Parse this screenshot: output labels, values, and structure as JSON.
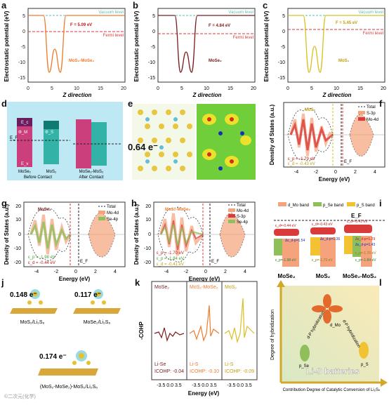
{
  "panels": {
    "a": {
      "letter": "a",
      "vacuum": "Vacuum level",
      "fermi": "Fermi level",
      "phi": "F = 5.09 eV",
      "material": "MoS₂-MoSe₂",
      "ylabel": "Electrostatic potential (eV)",
      "xlabel": "Z direction",
      "xticks": [
        "0",
        "5",
        "10",
        "15",
        "20"
      ],
      "yticks": [
        "5",
        "0",
        "-5",
        "-10",
        "-15"
      ]
    },
    "b": {
      "letter": "b",
      "vacuum": "Vacuum level",
      "fermi": "Fermi level",
      "phi": "F = 4.84 eV",
      "material": "MoSe₂",
      "ylabel": "Electrostatic potential (eV)",
      "xlabel": "Z direction",
      "xticks": [
        "0",
        "5",
        "10",
        "15",
        "20"
      ],
      "yticks": [
        "5",
        "0",
        "-5",
        "-10",
        "-15"
      ]
    },
    "c": {
      "letter": "c",
      "vacuum": "Vacuum level",
      "fermi": "Fermi level",
      "phi": "F = 5.45 eV",
      "material": "MoS₂",
      "ylabel": "Electrostatic potential (eV)",
      "xlabel": "Z direction",
      "xticks": [
        "0",
        "5",
        "10",
        "15",
        "20"
      ],
      "yticks": [
        "5",
        "0",
        "-5",
        "-10",
        "-15"
      ]
    },
    "d": {
      "letter": "d",
      "ef": "E_F",
      "before": "Before Contact",
      "after": "After Contact",
      "m1": "MoSe₂",
      "m2": "MoS₂",
      "m3": "MoSe₂-MoS₂",
      "ec": "E_c",
      "ev": "E_v",
      "phim": "Φ_M",
      "phis": "Φ_S"
    },
    "e": {
      "letter": "e",
      "charge": "0.64 e⁻"
    },
    "f": {
      "letter": "f",
      "material": "MoS₂",
      "legend": [
        "Total",
        "S-3p",
        "Mo-4d"
      ],
      "ep": "ε_p = -1.79 eV",
      "ed": "ε_d = -0.43 eV",
      "ef": "E_F",
      "ylabel": "Density of States (a.u.)",
      "xlabel": "Energy (eV)",
      "xticks": [
        "-4",
        "-2",
        "0",
        "2",
        "4"
      ]
    },
    "g": {
      "letter": "g",
      "material": "MoSe₂",
      "legend": [
        "Total",
        "Mo-4d",
        "Se-4p"
      ],
      "ep": "ε_p = -1.98 eV",
      "ed": "ε_d = -0.44 eV",
      "ef": "E_F",
      "ylabel": "Density of States (a.u.)",
      "xlabel": "Energy (eV)",
      "xticks": [
        "-4",
        "-2",
        "0",
        "2",
        "4"
      ],
      "yticks": [
        "20",
        "10",
        "0",
        "-10",
        "-20"
      ]
    },
    "h": {
      "letter": "h",
      "material": "MoS₂-MoSe₂",
      "legend": [
        "Total",
        "Mo-4d",
        "S-3p",
        "Se-4p"
      ],
      "ep": "ε_p = -1.70 eV",
      "ep2": "ε_p = -1.84 eV",
      "ed": "ε_d = -0.41 eV",
      "ef": "E_F",
      "ylabel": "Density of States (a.u.)",
      "xlabel": "Energy (eV)",
      "xticks": [
        "-4",
        "-2",
        "0",
        "2",
        "4"
      ],
      "yticks": [
        "20",
        "10",
        "0",
        "-10",
        "-20"
      ]
    },
    "i": {
      "letter": "i",
      "legend": [
        "d_Mo band",
        "p_Se band",
        "p_S band"
      ],
      "ef": "E_F",
      "col1": "MoSe₂",
      "col2": "MoS₂",
      "col3": "MoSe₂-MoS₂",
      "c1": [
        "ε_d=-0.44 eV",
        "Δε_d-p=1.54",
        "ε_p=-1.98 eV"
      ],
      "c2": [
        "ε_d=-0.43 eV",
        "Δε_d-p=1.36",
        "ε_p=-1.79 eV"
      ],
      "c3": [
        "ε_d=-0.41 eV",
        "Δε_d-p=1.29",
        "Δε_d-p=1.43",
        "ε_p=-1.70 eV",
        "ε_p=-1.84 eV"
      ]
    },
    "j": {
      "letter": "j",
      "q1": "0.148 e⁻",
      "q2": "0.117 e⁻",
      "q3": "0.174 e⁻",
      "n1": "MoS₂/Li₂S₆",
      "n2": "MoSe₂/Li₂S₆",
      "n3": "(MoS₂-MoSe₂)-MoS₂/Li₂S₆"
    },
    "k": {
      "letter": "k",
      "ylabel": "-COHP",
      "xlabel": "Energy (eV)",
      "sub": [
        {
          "t": "MoSe₂",
          "b": "Li-Se",
          "v": "ICOHP: -0.04"
        },
        {
          "t": "MoS₂-MoSe₂",
          "b": "Li-S",
          "v": "ICOHP: -0.10"
        },
        {
          "t": "MoS₂",
          "b": "Li-S",
          "v": "ICOHP: -0.09"
        }
      ],
      "xticks": "-3.5 0.0 3.5"
    },
    "l": {
      "letter": "l",
      "title": "Li-S batteries",
      "ylabel": "Degree of hybridization",
      "xlabel": "Contribution Degree of Catalytic Conversion of Li₂Sₙ",
      "dmo": "d_Mo",
      "pse": "p_Se",
      "ps": "p_S",
      "dp1": "d-P hybridization",
      "dp2": "d-P hybridization"
    },
    "watermark": "©二次元(化学)"
  },
  "colors": {
    "vacuum": "#5bbfb0",
    "fermi": "#d93a3a",
    "a": "#f07b2c",
    "b": "#7a1c1c",
    "c": "#d8c020",
    "label": "#c01818"
  }
}
